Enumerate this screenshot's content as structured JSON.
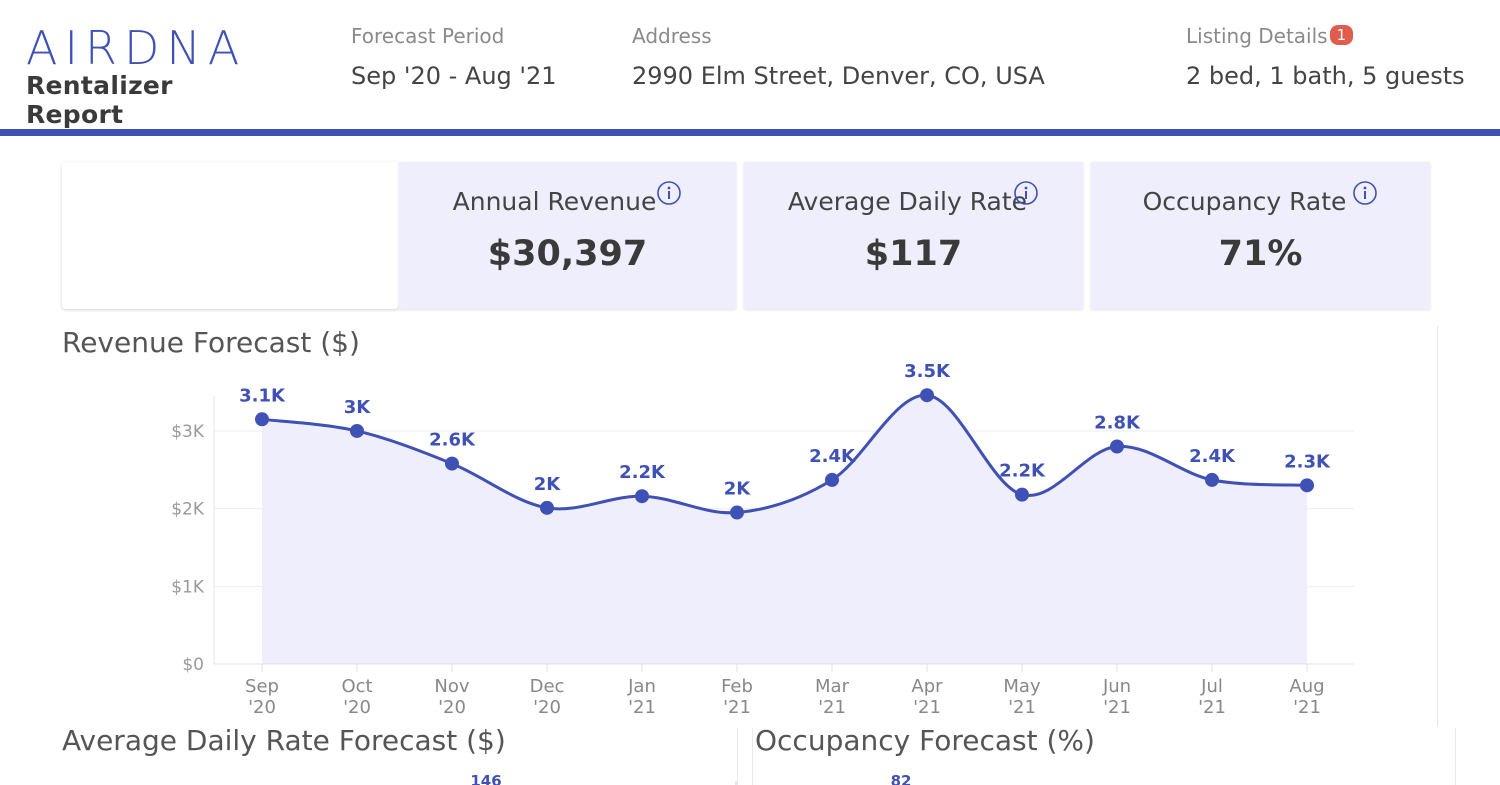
{
  "header": {
    "logo_text": "AIRDNA",
    "logo_subtitle": "Rentalizer Report",
    "forecast_period_label": "Forecast Period",
    "forecast_period_value": "Sep '20 - Aug '21",
    "address_label": "Address",
    "address_value": "2990 Elm Street, Denver, CO, USA",
    "listing_label": "Listing Details",
    "listing_badge": "1",
    "listing_value": "2 bed, 1 bath, 5 guests",
    "accent_color": "#3f51b5"
  },
  "kpis": [
    {
      "title": "Annual Revenue",
      "value": "$30,397",
      "icon": "info-icon"
    },
    {
      "title": "Average Daily Rate",
      "value": "$117",
      "icon": "info-icon"
    },
    {
      "title": "Occupancy Rate",
      "value": "71%",
      "icon": "info-icon"
    }
  ],
  "chart_data": [
    {
      "type": "area",
      "title": "Revenue Forecast ($)",
      "categories": [
        "Sep '20",
        "Oct '20",
        "Nov '20",
        "Dec '20",
        "Jan '21",
        "Feb '21",
        "Mar '21",
        "Apr '21",
        "May '21",
        "Jun '21",
        "Jul '21",
        "Aug '21"
      ],
      "category_month": [
        "Sep",
        "Oct",
        "Nov",
        "Dec",
        "Jan",
        "Feb",
        "Mar",
        "Apr",
        "May",
        "Jun",
        "Jul",
        "Aug"
      ],
      "category_year": [
        "'20",
        "'20",
        "'20",
        "'20",
        "'21",
        "'21",
        "'21",
        "'21",
        "'21",
        "'21",
        "'21",
        "'21"
      ],
      "values": [
        3150,
        3000,
        2580,
        2010,
        2160,
        1950,
        2370,
        3460,
        2180,
        2800,
        2370,
        2300
      ],
      "data_labels": [
        "3.1K",
        "3K",
        "2.6K",
        "2K",
        "2.2K",
        "2K",
        "2.4K",
        "3.5K",
        "2.2K",
        "2.8K",
        "2.4K",
        "2.3K"
      ],
      "y_ticks": [
        0,
        1000,
        2000,
        3000
      ],
      "y_tick_labels": [
        "$0",
        "$1K",
        "$2K",
        "$3K"
      ],
      "ylim": [
        0,
        3450
      ],
      "grid": true,
      "legend": "none",
      "line_color": "#3f51b5",
      "fill_color": "#eeeefc"
    },
    {
      "type": "bar",
      "title": "Average Daily Rate Forecast ($)",
      "visible_data_labels": [
        "146"
      ]
    },
    {
      "type": "bar",
      "title": "Occupancy Forecast (%)",
      "visible_data_labels": [
        "82"
      ]
    }
  ]
}
